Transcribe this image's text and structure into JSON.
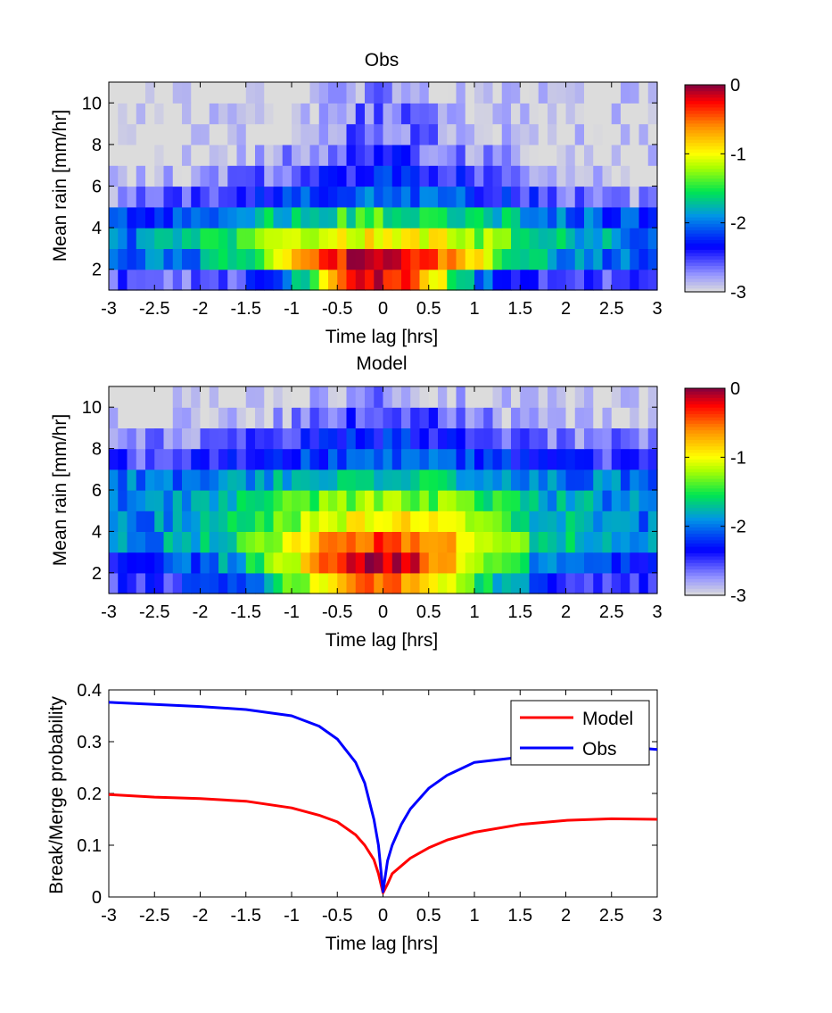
{
  "colors": {
    "frame": "#000000",
    "background": "#ffffff",
    "model_line": "#ff0000",
    "obs_line": "#0000ff",
    "colormap": [
      "#dcdcdc",
      "#0000ff",
      "#00e060",
      "#ffff00",
      "#ff0000",
      "#800040"
    ]
  },
  "chart_data": [
    {
      "type": "heatmap",
      "title": "Obs",
      "xlabel": "Time lag [hrs]",
      "ylabel": "Mean rain [mm/hr]",
      "xlim": [
        -3,
        3
      ],
      "ylim": [
        1,
        11
      ],
      "xticks": [
        "-3",
        "-2.5",
        "-2",
        "-1.5",
        "-1",
        "-0.5",
        "0",
        "0.5",
        "1",
        "1.5",
        "2",
        "2.5",
        "3"
      ],
      "yticks": [
        "2",
        "4",
        "6",
        "8",
        "10"
      ],
      "rows_y": [
        2,
        3,
        4,
        5,
        6,
        7,
        8,
        9,
        10,
        11
      ],
      "value_description": "log10 probability; peak near 0 at lag 0 and rain 2-3 mm/hr, falling to -3 at large lags and high rain",
      "colorbar": {
        "range": [
          -3,
          0
        ],
        "ticks": [
          "0",
          "-1",
          "-2",
          "-3"
        ]
      },
      "rows": [
        {
          "y": 1.5,
          "peak": -0.15,
          "width": 0.9,
          "floor": -2.6
        },
        {
          "y": 2.5,
          "peak": -0.05,
          "width": 1.3,
          "floor": -2.1
        },
        {
          "y": 3.5,
          "peak": -1.0,
          "width": 2.2,
          "floor": -2.25
        },
        {
          "y": 4.5,
          "peak": -1.5,
          "width": 2.2,
          "floor": -2.4
        },
        {
          "y": 5.5,
          "peak": -2.0,
          "width": 1.8,
          "floor": -2.8
        },
        {
          "y": 6.5,
          "peak": -2.3,
          "width": 1.6,
          "floor": -3.0
        },
        {
          "y": 7.5,
          "peak": -2.5,
          "width": 1.2,
          "floor": -3.0
        },
        {
          "y": 8.5,
          "peak": -2.6,
          "width": 0.9,
          "floor": -3.0
        },
        {
          "y": 9.5,
          "peak": -2.6,
          "width": 0.6,
          "floor": -3.0
        },
        {
          "y": 10.5,
          "peak": -2.7,
          "width": 0.5,
          "floor": -3.0
        }
      ]
    },
    {
      "type": "heatmap",
      "title": "Model",
      "xlabel": "Time lag [hrs]",
      "ylabel": "Mean rain [mm/hr]",
      "xlim": [
        -3,
        3
      ],
      "ylim": [
        1,
        11
      ],
      "xticks": [
        "-3",
        "-2.5",
        "-2",
        "-1.5",
        "-1",
        "-0.5",
        "0",
        "0.5",
        "1",
        "1.5",
        "2",
        "2.5",
        "3"
      ],
      "yticks": [
        "2",
        "4",
        "6",
        "8",
        "10"
      ],
      "colorbar": {
        "range": [
          -3,
          0
        ],
        "ticks": [
          "0",
          "-1",
          "-2",
          "-3"
        ]
      },
      "rows": [
        {
          "y": 1.5,
          "peak": -0.6,
          "width": 1.3,
          "floor": -2.5
        },
        {
          "y": 2.5,
          "peak": -0.15,
          "width": 1.3,
          "floor": -2.3
        },
        {
          "y": 3.5,
          "peak": -0.45,
          "width": 1.5,
          "floor": -2.0
        },
        {
          "y": 4.5,
          "peak": -0.9,
          "width": 1.5,
          "floor": -2.0
        },
        {
          "y": 5.5,
          "peak": -1.2,
          "width": 1.6,
          "floor": -2.0
        },
        {
          "y": 6.5,
          "peak": -1.6,
          "width": 1.8,
          "floor": -2.1
        },
        {
          "y": 7.5,
          "peak": -2.1,
          "width": 1.8,
          "floor": -2.6
        },
        {
          "y": 8.5,
          "peak": -2.3,
          "width": 1.8,
          "floor": -2.8
        },
        {
          "y": 9.5,
          "peak": -2.5,
          "width": 1.2,
          "floor": -3.0
        },
        {
          "y": 10.5,
          "peak": -2.7,
          "width": 0.8,
          "floor": -3.0
        }
      ]
    },
    {
      "type": "line",
      "xlabel": "Time lag [hrs]",
      "ylabel": "Break/Merge probability",
      "xlim": [
        -3,
        3
      ],
      "ylim": [
        0,
        0.4
      ],
      "xticks": [
        "-3",
        "-2.5",
        "-2",
        "-1.5",
        "-1",
        "-0.5",
        "0",
        "0.5",
        "1",
        "1.5",
        "2",
        "2.5",
        "3"
      ],
      "yticks": [
        "0",
        "0.1",
        "0.2",
        "0.3",
        "0.4"
      ],
      "legend": "top-right",
      "series": [
        {
          "name": "Model",
          "color": "#ff0000",
          "x": [
            -3,
            -2.5,
            -2,
            -1.5,
            -1,
            -0.7,
            -0.5,
            -0.3,
            -0.2,
            -0.1,
            -0.05,
            0,
            0.05,
            0.1,
            0.2,
            0.3,
            0.5,
            0.7,
            1,
            1.5,
            2,
            2.5,
            3
          ],
          "y": [
            0.198,
            0.193,
            0.19,
            0.185,
            0.172,
            0.158,
            0.145,
            0.12,
            0.1,
            0.072,
            0.045,
            0.008,
            0.025,
            0.045,
            0.06,
            0.075,
            0.095,
            0.11,
            0.125,
            0.14,
            0.148,
            0.151,
            0.15
          ]
        },
        {
          "name": "Obs",
          "color": "#0000ff",
          "x": [
            -3,
            -2.5,
            -2,
            -1.5,
            -1,
            -0.7,
            -0.5,
            -0.3,
            -0.2,
            -0.1,
            -0.05,
            0,
            0.05,
            0.1,
            0.2,
            0.3,
            0.5,
            0.7,
            1,
            1.5,
            2,
            2.5,
            3
          ],
          "y": [
            0.376,
            0.372,
            0.368,
            0.362,
            0.35,
            0.33,
            0.305,
            0.26,
            0.22,
            0.15,
            0.1,
            0.01,
            0.07,
            0.1,
            0.14,
            0.17,
            0.21,
            0.235,
            0.26,
            0.27,
            0.285,
            0.292,
            0.285
          ]
        }
      ]
    }
  ]
}
